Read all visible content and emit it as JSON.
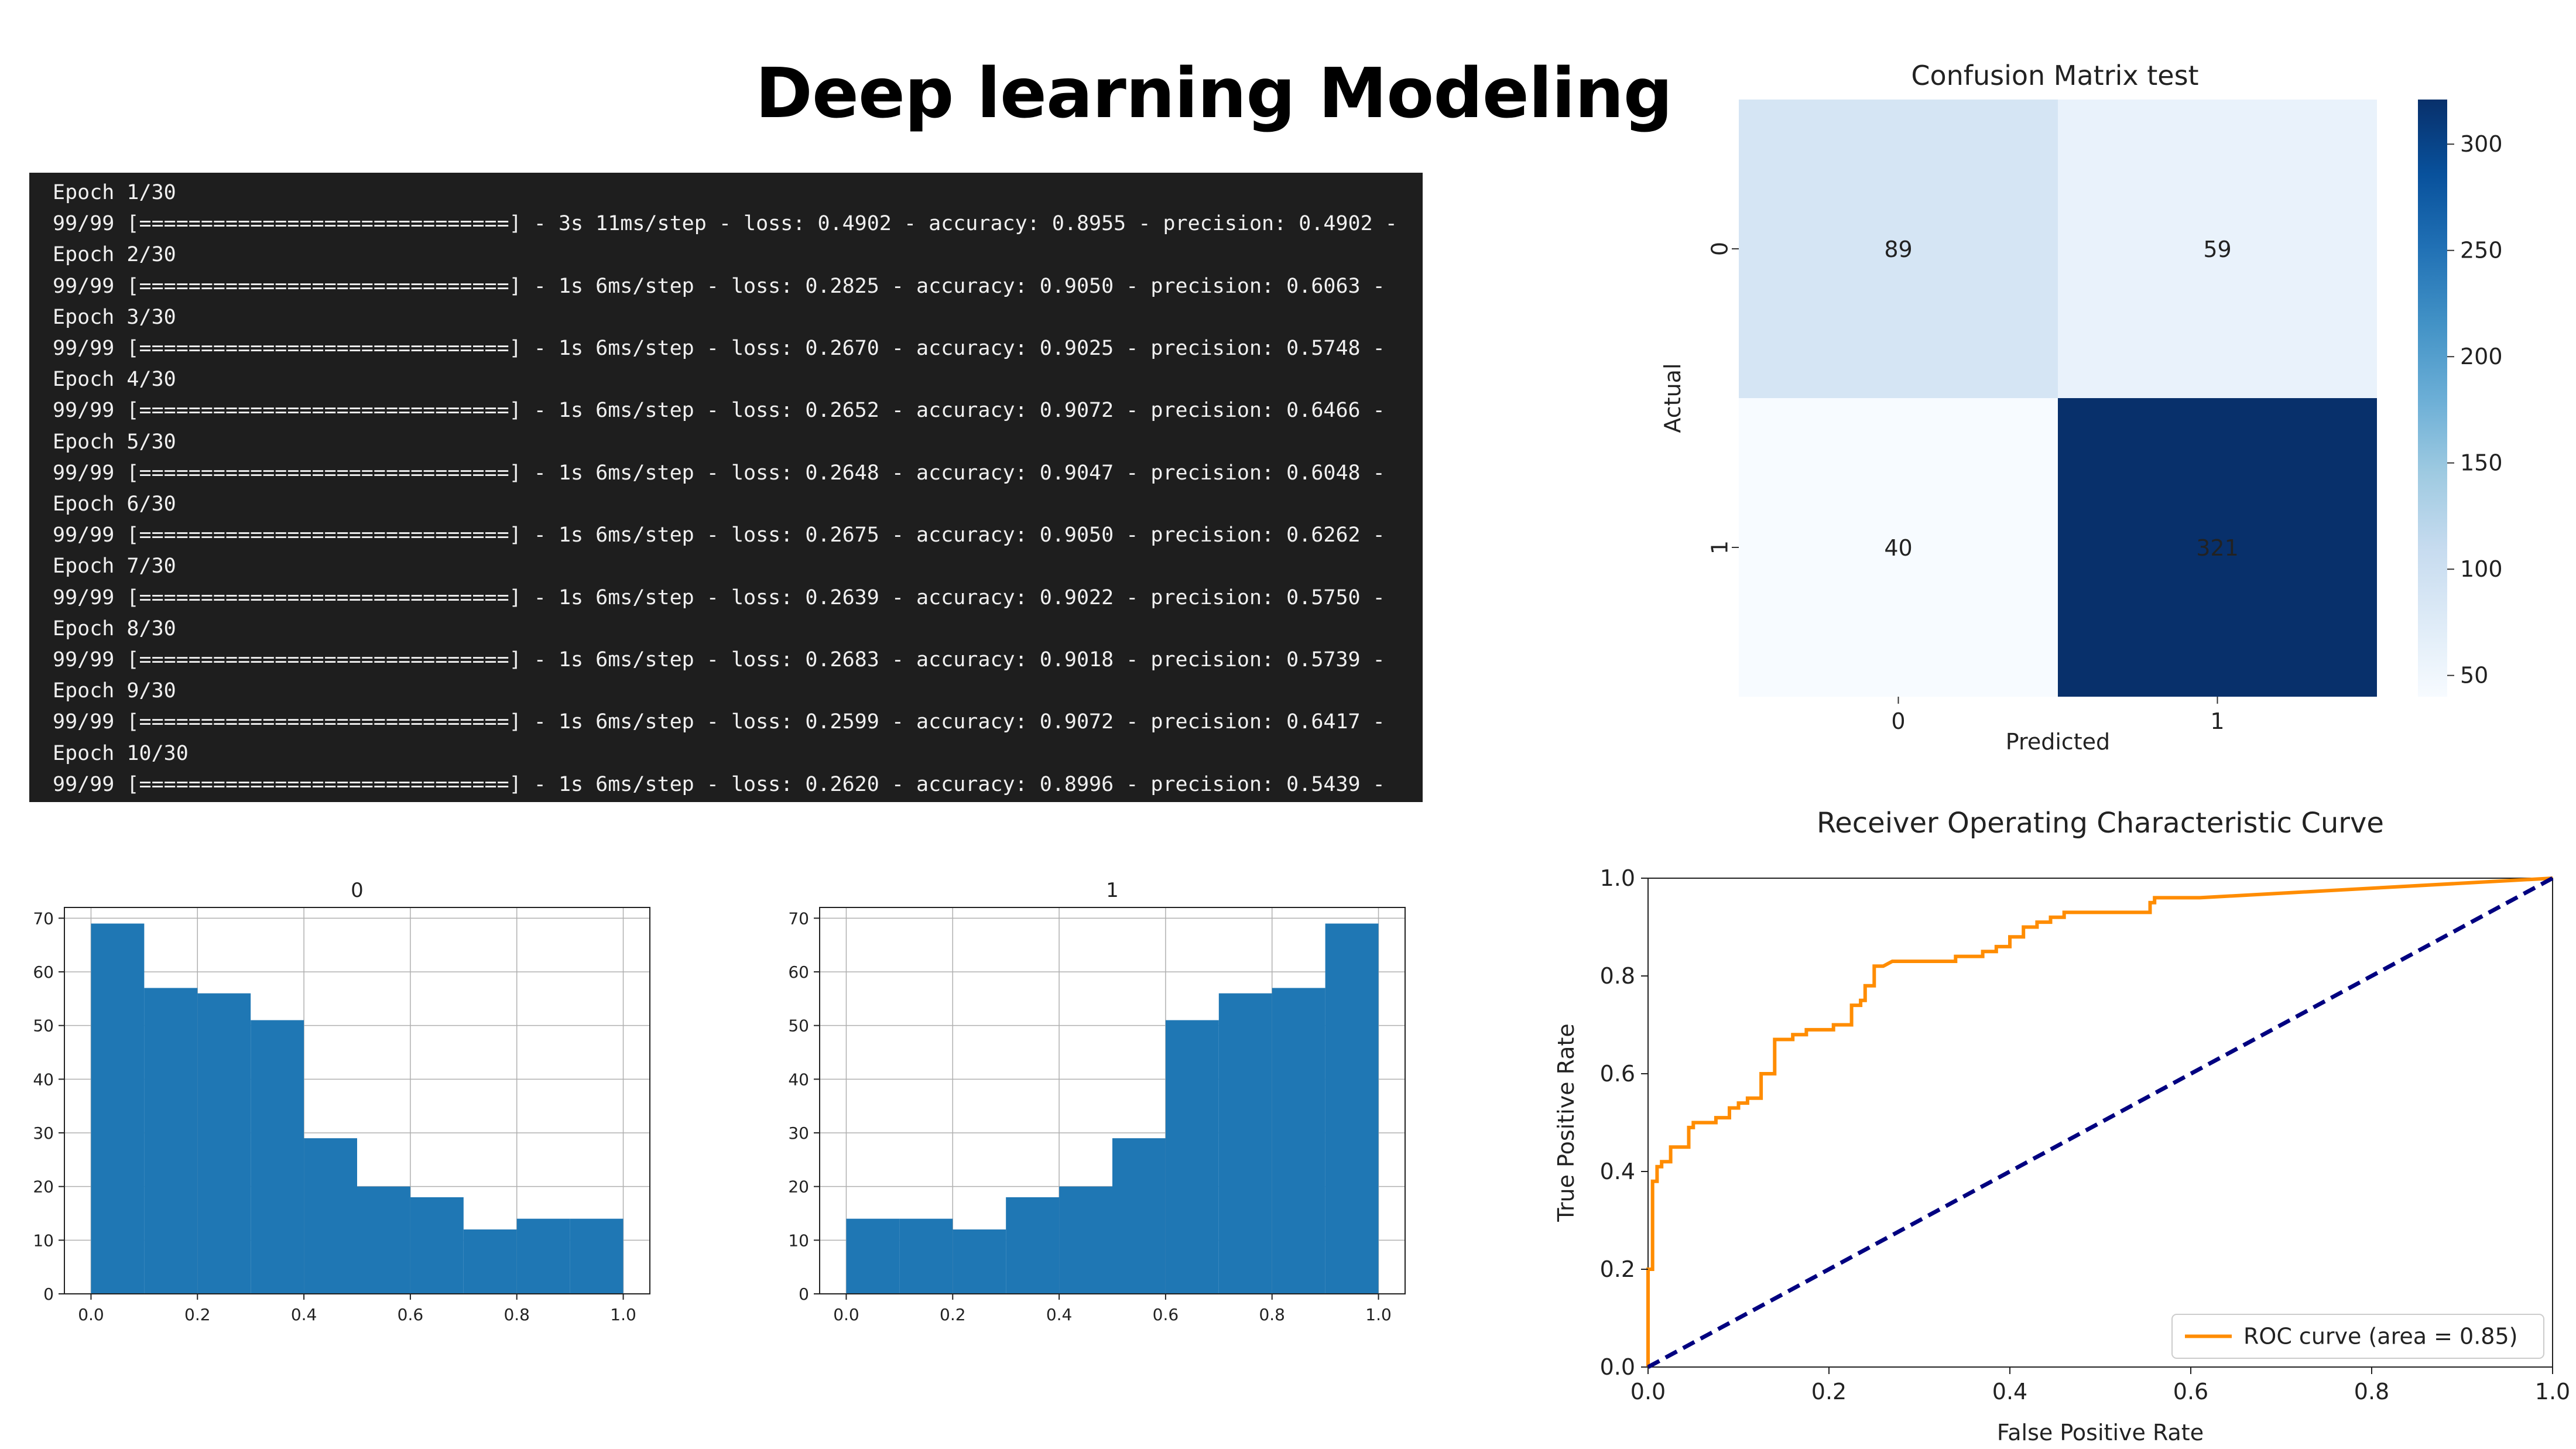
{
  "slide": {
    "title": "Deep learning Modeling"
  },
  "terminal": {
    "lines": [
      "Epoch 1/30",
      "99/99 [==============================] - 3s 11ms/step - loss: 0.4902 - accuracy: 0.8955 - precision: 0.4902 -",
      "Epoch 2/30",
      "99/99 [==============================] - 1s 6ms/step - loss: 0.2825 - accuracy: 0.9050 - precision: 0.6063 -",
      "Epoch 3/30",
      "99/99 [==============================] - 1s 6ms/step - loss: 0.2670 - accuracy: 0.9025 - precision: 0.5748 -",
      "Epoch 4/30",
      "99/99 [==============================] - 1s 6ms/step - loss: 0.2652 - accuracy: 0.9072 - precision: 0.6466 -",
      "Epoch 5/30",
      "99/99 [==============================] - 1s 6ms/step - loss: 0.2648 - accuracy: 0.9047 - precision: 0.6048 -",
      "Epoch 6/30",
      "99/99 [==============================] - 1s 6ms/step - loss: 0.2675 - accuracy: 0.9050 - precision: 0.6262 -",
      "Epoch 7/30",
      "99/99 [==============================] - 1s 6ms/step - loss: 0.2639 - accuracy: 0.9022 - precision: 0.5750 -",
      "Epoch 8/30",
      "99/99 [==============================] - 1s 6ms/step - loss: 0.2683 - accuracy: 0.9018 - precision: 0.5739 -",
      "Epoch 9/30",
      "99/99 [==============================] - 1s 6ms/step - loss: 0.2599 - accuracy: 0.9072 - precision: 0.6417 -",
      "Epoch 10/30",
      "99/99 [==============================] - 1s 6ms/step - loss: 0.2620 - accuracy: 0.8996 - precision: 0.5439 -"
    ]
  },
  "chart_data": [
    {
      "type": "heatmap",
      "title": "Confusion Matrix test",
      "xlabel": "Predicted",
      "ylabel": "Actual",
      "x_categories": [
        "0",
        "1"
      ],
      "y_categories": [
        "0",
        "1"
      ],
      "values": [
        [
          89,
          59
        ],
        [
          40,
          321
        ]
      ],
      "colorbar": {
        "min": 40,
        "max": 321,
        "ticks": [
          50,
          100,
          150,
          200,
          250,
          300
        ]
      },
      "colormap": "Blues"
    },
    {
      "type": "bar",
      "title": "0",
      "bin_edges": [
        0.0,
        0.1,
        0.2,
        0.3,
        0.4,
        0.5,
        0.6,
        0.7,
        0.8,
        0.9,
        1.0
      ],
      "values": [
        69,
        57,
        56,
        51,
        29,
        20,
        18,
        12,
        14,
        14
      ],
      "xlim": [
        0.0,
        1.0
      ],
      "ylim": [
        0,
        72
      ],
      "xticks": [
        "0.0",
        "0.2",
        "0.4",
        "0.6",
        "0.8",
        "1.0"
      ],
      "yticks": [
        "0",
        "10",
        "20",
        "30",
        "40",
        "50",
        "60",
        "70"
      ],
      "grid": true,
      "color": "#1f77b4"
    },
    {
      "type": "bar",
      "title": "1",
      "bin_edges": [
        0.0,
        0.1,
        0.2,
        0.3,
        0.4,
        0.5,
        0.6,
        0.7,
        0.8,
        0.9,
        1.0
      ],
      "values": [
        14,
        14,
        12,
        18,
        20,
        29,
        51,
        56,
        57,
        69
      ],
      "xlim": [
        0.0,
        1.0
      ],
      "ylim": [
        0,
        72
      ],
      "xticks": [
        "0.0",
        "0.2",
        "0.4",
        "0.6",
        "0.8",
        "1.0"
      ],
      "yticks": [
        "0",
        "10",
        "20",
        "30",
        "40",
        "50",
        "60",
        "70"
      ],
      "grid": true,
      "color": "#1f77b4"
    },
    {
      "type": "line",
      "title": "Receiver Operating Characteristic Curve",
      "xlabel": "False Positive Rate",
      "ylabel": "True Positive Rate",
      "xlim": [
        0.0,
        1.0
      ],
      "ylim": [
        0.0,
        1.0
      ],
      "xticks": [
        "0.0",
        "0.2",
        "0.4",
        "0.6",
        "0.8",
        "1.0"
      ],
      "yticks": [
        "0.0",
        "0.2",
        "0.4",
        "0.6",
        "0.8",
        "1.0"
      ],
      "legend": {
        "position": "lower-right"
      },
      "series": [
        {
          "name": "ROC curve (area = 0.85)",
          "color": "#ff8c00",
          "style": "solid",
          "x": [
            0.0,
            0.0,
            0.005,
            0.005,
            0.01,
            0.01,
            0.015,
            0.015,
            0.025,
            0.025,
            0.03,
            0.03,
            0.045,
            0.045,
            0.05,
            0.05,
            0.06,
            0.06,
            0.075,
            0.075,
            0.09,
            0.09,
            0.1,
            0.1,
            0.11,
            0.11,
            0.125,
            0.125,
            0.14,
            0.14,
            0.16,
            0.16,
            0.175,
            0.175,
            0.19,
            0.19,
            0.205,
            0.205,
            0.22,
            0.22,
            0.225,
            0.225,
            0.235,
            0.235,
            0.24,
            0.24,
            0.25,
            0.25,
            0.26,
            0.27,
            0.27,
            0.34,
            0.34,
            0.37,
            0.37,
            0.385,
            0.385,
            0.4,
            0.4,
            0.415,
            0.415,
            0.43,
            0.43,
            0.445,
            0.445,
            0.46,
            0.46,
            0.475,
            0.475,
            0.555,
            0.555,
            0.56,
            0.56,
            0.61,
            1.0
          ],
          "y": [
            0.0,
            0.2,
            0.2,
            0.38,
            0.38,
            0.41,
            0.41,
            0.42,
            0.42,
            0.45,
            0.45,
            0.45,
            0.45,
            0.49,
            0.49,
            0.5,
            0.5,
            0.5,
            0.5,
            0.51,
            0.51,
            0.53,
            0.53,
            0.54,
            0.54,
            0.55,
            0.55,
            0.6,
            0.6,
            0.67,
            0.67,
            0.68,
            0.68,
            0.69,
            0.69,
            0.69,
            0.69,
            0.7,
            0.7,
            0.7,
            0.7,
            0.74,
            0.74,
            0.75,
            0.75,
            0.78,
            0.78,
            0.82,
            0.82,
            0.83,
            0.83,
            0.83,
            0.84,
            0.84,
            0.85,
            0.85,
            0.86,
            0.86,
            0.88,
            0.88,
            0.9,
            0.9,
            0.91,
            0.91,
            0.92,
            0.92,
            0.93,
            0.93,
            0.93,
            0.93,
            0.95,
            0.95,
            0.96,
            0.96,
            1.0
          ]
        },
        {
          "name": "",
          "color": "#000080",
          "style": "dashed",
          "x": [
            0.0,
            1.0
          ],
          "y": [
            0.0,
            1.0
          ]
        }
      ]
    }
  ]
}
